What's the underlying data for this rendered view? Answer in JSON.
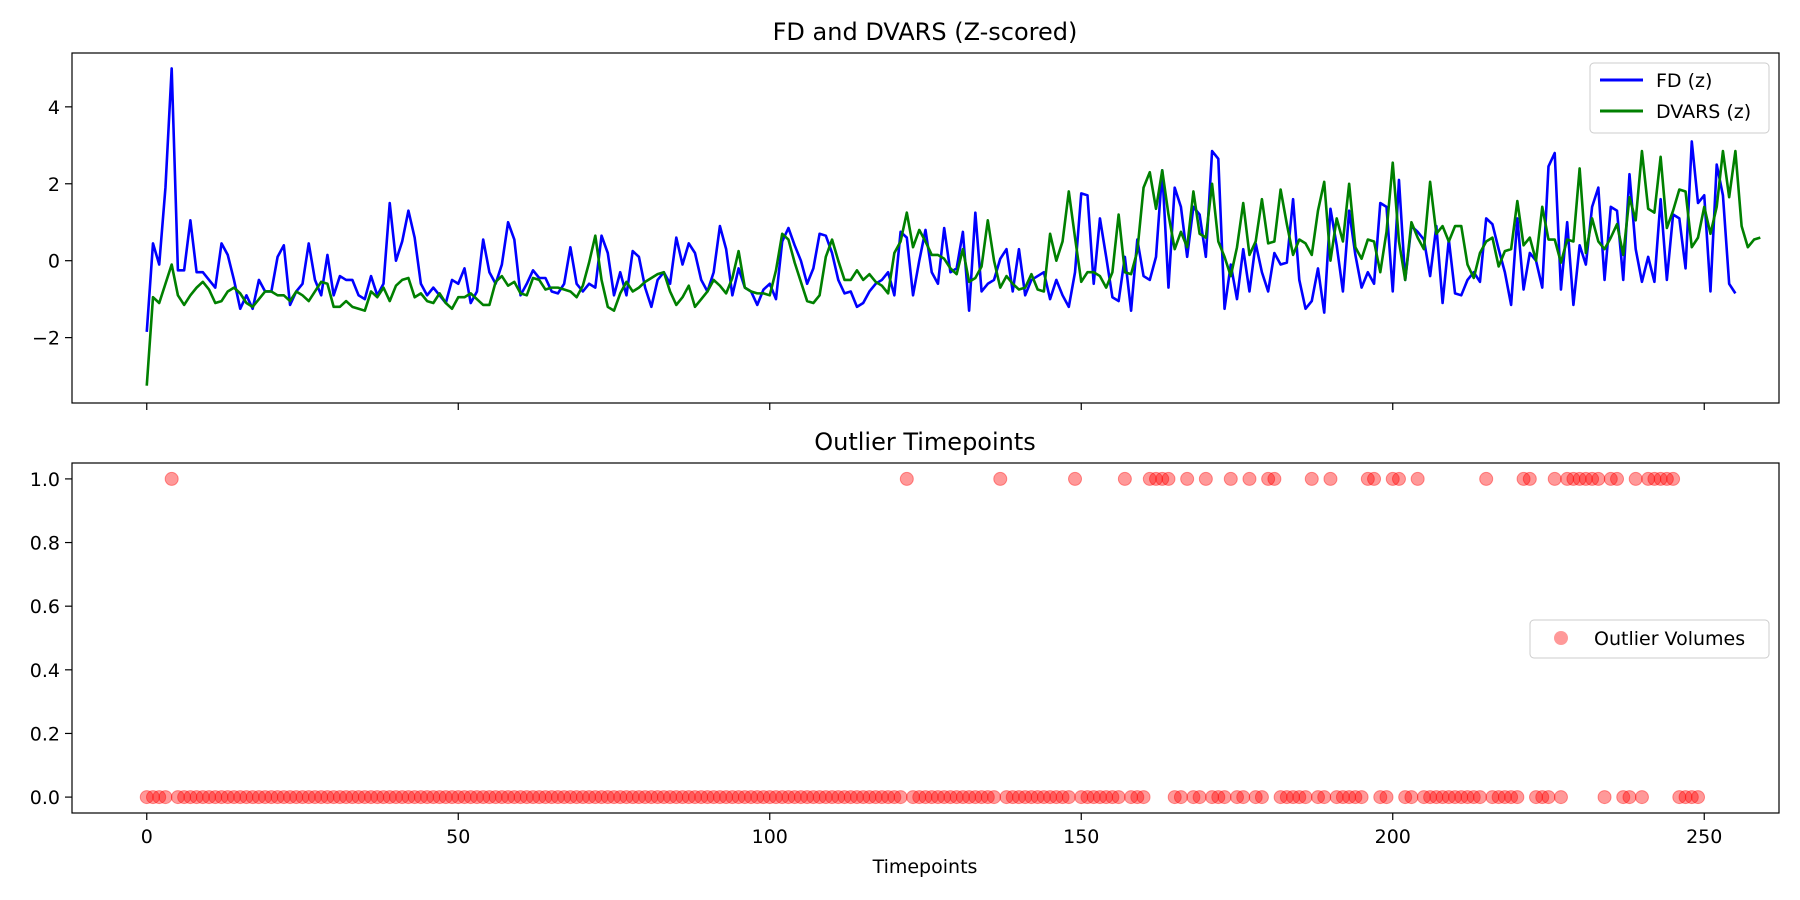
{
  "chart_data": [
    {
      "type": "line",
      "title": "FD and DVARS (Z-scored)",
      "xlabel": "",
      "ylabel": "",
      "xlim": [
        -12,
        262
      ],
      "ylim": [
        -3.7,
        5.4
      ],
      "yticks": [
        -2,
        0,
        2,
        4
      ],
      "yticklabels": [
        "−2",
        "0",
        "2",
        "4"
      ],
      "xticks": [
        0,
        50,
        100,
        150,
        200,
        250
      ],
      "show_xticklabels": false,
      "grid": false,
      "legend": "top-right",
      "series": [
        {
          "name": "FD (z)",
          "color": "#0000ff",
          "values": [
            -1.85,
            0.45,
            -0.1,
            1.9,
            5.0,
            -0.25,
            -0.25,
            1.05,
            -0.3,
            -0.3,
            -0.5,
            -0.7,
            0.45,
            0.15,
            -0.5,
            -1.25,
            -0.9,
            -1.25,
            -0.5,
            -0.8,
            -0.8,
            0.1,
            0.4,
            -1.15,
            -0.8,
            -0.6,
            0.45,
            -0.5,
            -0.9,
            0.15,
            -0.9,
            -0.4,
            -0.5,
            -0.5,
            -0.9,
            -1.0,
            -0.4,
            -0.9,
            -0.6,
            1.5,
            0.0,
            0.5,
            1.3,
            0.6,
            -0.6,
            -0.9,
            -0.7,
            -0.9,
            -1.1,
            -0.5,
            -0.6,
            -0.2,
            -1.1,
            -0.8,
            0.55,
            -0.3,
            -0.6,
            -0.1,
            1.0,
            0.55,
            -0.9,
            -0.6,
            -0.25,
            -0.45,
            -0.45,
            -0.8,
            -0.85,
            -0.6,
            0.35,
            -0.6,
            -0.8,
            -0.6,
            -0.7,
            0.65,
            0.2,
            -0.9,
            -0.3,
            -0.9,
            0.25,
            0.1,
            -0.7,
            -1.2,
            -0.5,
            -0.3,
            -0.6,
            0.6,
            -0.1,
            0.45,
            0.2,
            -0.5,
            -0.8,
            -0.3,
            0.9,
            0.3,
            -0.9,
            -0.2,
            -0.7,
            -0.8,
            -1.15,
            -0.75,
            -0.6,
            -1.0,
            0.5,
            0.85,
            0.4,
            0.0,
            -0.6,
            -0.2,
            0.7,
            0.65,
            0.2,
            -0.5,
            -0.85,
            -0.8,
            -1.2,
            -1.1,
            -0.8,
            -0.6,
            -0.5,
            -0.3,
            -0.9,
            0.75,
            0.6,
            -0.9,
            0.0,
            0.8,
            -0.3,
            -0.6,
            0.85,
            -0.3,
            -0.2,
            0.75,
            -1.3,
            1.25,
            -0.8,
            -0.6,
            -0.5,
            0.05,
            0.3,
            -0.8,
            0.3,
            -0.9,
            -0.5,
            -0.4,
            -0.3,
            -1.0,
            -0.5,
            -0.9,
            -1.2,
            -0.3,
            1.75,
            1.7,
            -0.6,
            1.1,
            0.1,
            -0.95,
            -1.05,
            0.1,
            -1.3,
            0.55,
            -0.4,
            -0.5,
            0.1,
            2.35,
            -0.7,
            1.9,
            1.4,
            0.1,
            1.4,
            1.2,
            0.1,
            2.85,
            2.65,
            -1.25,
            -0.1,
            -1.0,
            0.3,
            -0.8,
            0.45,
            -0.3,
            -0.8,
            0.2,
            -0.1,
            -0.05,
            1.6,
            -0.5,
            -1.25,
            -1.05,
            -0.2,
            -1.35,
            1.35,
            0.4,
            -0.8,
            1.3,
            0.15,
            -0.7,
            -0.3,
            -0.6,
            1.5,
            1.4,
            -0.8,
            2.1,
            -0.5,
            0.9,
            0.75,
            0.55,
            -0.4,
            0.9,
            -1.1,
            0.55,
            -0.85,
            -0.9,
            -0.5,
            -0.3,
            -0.55,
            1.1,
            0.95,
            0.3,
            -0.3,
            -1.15,
            1.1,
            -0.75,
            0.2,
            0.0,
            -0.7,
            2.45,
            2.8,
            -0.75,
            1.0,
            -1.15,
            0.4,
            -0.1,
            1.4,
            1.9,
            -0.5,
            1.4,
            1.3,
            -0.5,
            2.25,
            0.3,
            -0.55,
            0.1,
            -0.55,
            1.6,
            -0.5,
            1.2,
            1.1,
            -0.2,
            3.1,
            1.5,
            1.7,
            -0.8,
            2.5,
            1.7,
            -0.6,
            -0.85
          ]
        },
        {
          "name": "DVARS (z)",
          "color": "#008000",
          "values": [
            -3.25,
            -0.95,
            -1.1,
            -0.6,
            -0.1,
            -0.9,
            -1.15,
            -0.9,
            -0.7,
            -0.55,
            -0.75,
            -1.1,
            -1.05,
            -0.8,
            -0.7,
            -0.85,
            -1.1,
            -1.2,
            -1.0,
            -0.8,
            -0.8,
            -0.9,
            -0.9,
            -1.05,
            -0.8,
            -0.9,
            -1.05,
            -0.8,
            -0.55,
            -0.6,
            -1.2,
            -1.2,
            -1.05,
            -1.2,
            -1.25,
            -1.3,
            -0.8,
            -0.95,
            -0.7,
            -1.05,
            -0.65,
            -0.5,
            -0.45,
            -0.95,
            -0.85,
            -1.05,
            -1.1,
            -0.85,
            -1.1,
            -1.25,
            -0.95,
            -0.95,
            -0.85,
            -1.0,
            -1.15,
            -1.15,
            -0.55,
            -0.4,
            -0.65,
            -0.55,
            -0.85,
            -0.9,
            -0.45,
            -0.5,
            -0.75,
            -0.7,
            -0.7,
            -0.75,
            -0.8,
            -0.95,
            -0.65,
            -0.05,
            0.65,
            -0.5,
            -1.2,
            -1.3,
            -0.85,
            -0.55,
            -0.8,
            -0.7,
            -0.55,
            -0.45,
            -0.35,
            -0.3,
            -0.8,
            -1.15,
            -0.95,
            -0.65,
            -1.2,
            -1.0,
            -0.8,
            -0.5,
            -0.65,
            -0.85,
            -0.45,
            0.25,
            -0.7,
            -0.8,
            -0.85,
            -0.85,
            -0.9,
            -0.25,
            0.7,
            0.55,
            -0.05,
            -0.55,
            -1.05,
            -1.1,
            -0.9,
            0.1,
            0.55,
            0.0,
            -0.5,
            -0.5,
            -0.25,
            -0.5,
            -0.35,
            -0.55,
            -0.65,
            -0.85,
            0.2,
            0.5,
            1.25,
            0.35,
            0.8,
            0.5,
            0.15,
            0.15,
            0.05,
            -0.2,
            -0.35,
            0.3,
            -0.55,
            -0.45,
            -0.15,
            1.05,
            0.0,
            -0.7,
            -0.4,
            -0.6,
            -0.75,
            -0.7,
            -0.35,
            -0.75,
            -0.8,
            0.7,
            0.0,
            0.5,
            1.8,
            0.6,
            -0.55,
            -0.3,
            -0.3,
            -0.4,
            -0.7,
            -0.3,
            1.2,
            -0.3,
            -0.35,
            0.25,
            1.9,
            2.3,
            1.35,
            2.35,
            1.2,
            0.3,
            0.75,
            0.35,
            1.8,
            0.7,
            0.6,
            2.0,
            0.5,
            0.1,
            -0.4,
            0.35,
            1.5,
            0.15,
            0.5,
            1.6,
            0.45,
            0.5,
            1.85,
            0.95,
            0.15,
            0.55,
            0.45,
            0.15,
            1.3,
            2.05,
            0.0,
            1.1,
            0.5,
            2.0,
            0.35,
            0.05,
            0.55,
            0.5,
            -0.3,
            0.75,
            2.55,
            0.5,
            -0.5,
            1.0,
            0.6,
            0.3,
            2.05,
            0.7,
            0.9,
            0.5,
            0.9,
            0.9,
            -0.1,
            -0.45,
            0.2,
            0.5,
            0.6,
            -0.15,
            0.25,
            0.3,
            1.55,
            0.4,
            0.6,
            0.0,
            1.4,
            0.55,
            0.55,
            -0.05,
            0.55,
            0.5,
            2.4,
            0.2,
            1.1,
            0.5,
            0.3,
            0.6,
            0.95,
            0.15,
            1.65,
            1.05,
            2.85,
            1.35,
            1.25,
            2.7,
            0.85,
            1.3,
            1.85,
            1.8,
            0.35,
            0.6,
            1.4,
            0.7,
            1.4,
            2.85,
            1.65,
            2.85,
            0.9,
            0.35,
            0.55,
            0.6
          ]
        }
      ]
    },
    {
      "type": "scatter",
      "title": "Outlier Timepoints",
      "xlabel": "Timepoints",
      "ylabel": "",
      "xlim": [
        -12,
        262
      ],
      "ylim": [
        -0.05,
        1.05
      ],
      "xticks": [
        0,
        50,
        100,
        150,
        200,
        250
      ],
      "xticklabels": [
        "0",
        "50",
        "100",
        "150",
        "200",
        "250"
      ],
      "yticks": [
        0.0,
        0.2,
        0.4,
        0.6,
        0.8,
        1.0
      ],
      "yticklabels": [
        "0.0",
        "0.2",
        "0.4",
        "0.6",
        "0.8",
        "1.0"
      ],
      "grid": false,
      "legend": "center-right",
      "series": [
        {
          "name": "Outlier Volumes",
          "color": "#ff0000",
          "alpha": 0.4,
          "x_outliers": [
            4,
            122,
            137,
            149,
            157,
            161,
            162,
            163,
            164,
            167,
            170,
            174,
            177,
            180,
            181,
            187,
            190,
            196,
            197,
            200,
            201,
            204,
            215,
            221,
            222,
            226,
            228,
            229,
            230,
            231,
            232,
            233,
            235,
            236,
            239,
            241,
            242,
            243,
            244,
            245
          ],
          "x_missing": [],
          "x_range": [
            0,
            249
          ]
        }
      ]
    }
  ]
}
